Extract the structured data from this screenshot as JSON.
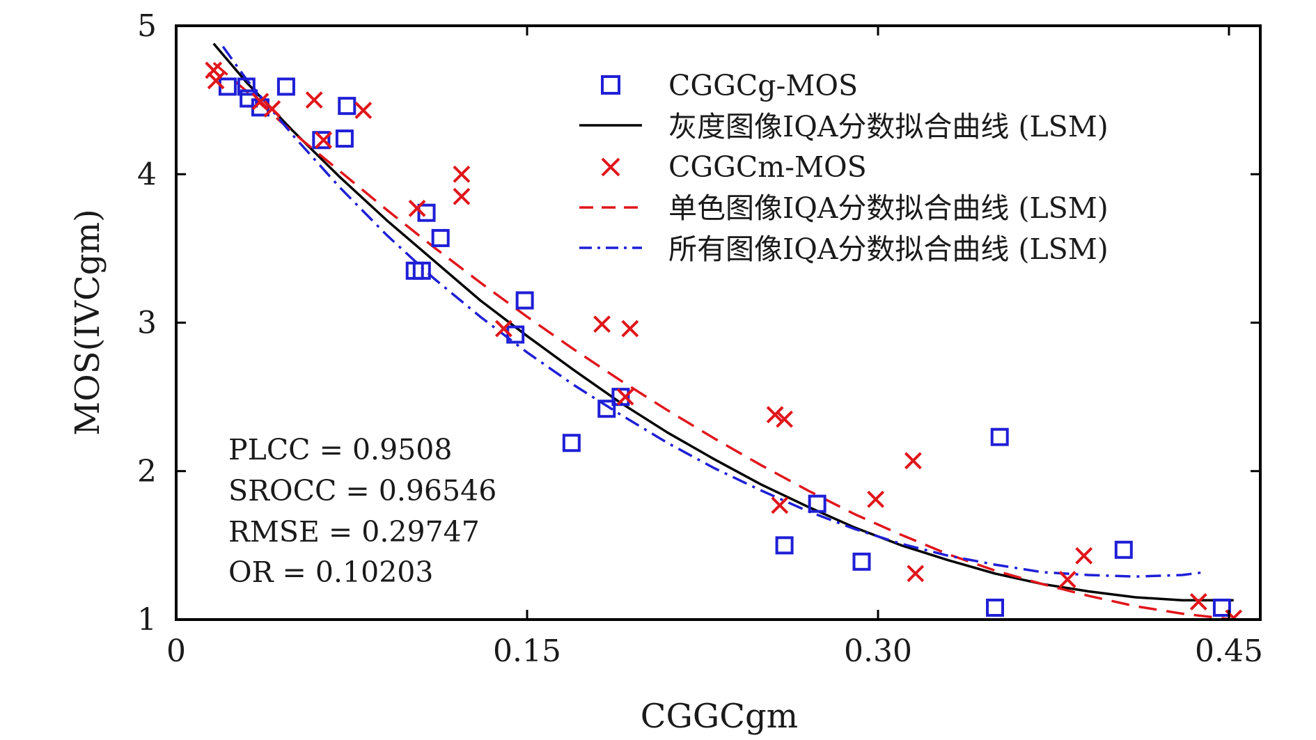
{
  "chart_data": {
    "type": "scatter",
    "xlabel": "CGGCgm",
    "ylabel": "MOS(IVCgm)",
    "xlim": [
      0,
      0.46
    ],
    "ylim": [
      1,
      5
    ],
    "x_ticks": [
      0,
      0.15,
      0.3,
      0.45
    ],
    "x_tick_labels": [
      "0",
      "0.15",
      "0.30",
      "0.45"
    ],
    "y_ticks": [
      1,
      2,
      3,
      4,
      5
    ],
    "y_tick_labels": [
      "1",
      "2",
      "3",
      "4",
      "5"
    ],
    "grid": false,
    "legend_position": "top-right",
    "series": [
      {
        "name": "CGGCg-MOS",
        "kind": "scatter",
        "marker": "square",
        "color": "#1f1fd6",
        "points": [
          [
            0.022,
            4.59
          ],
          [
            0.03,
            4.59
          ],
          [
            0.031,
            4.51
          ],
          [
            0.036,
            4.45
          ],
          [
            0.047,
            4.59
          ],
          [
            0.062,
            4.23
          ],
          [
            0.072,
            4.24
          ],
          [
            0.073,
            4.46
          ],
          [
            0.102,
            3.35
          ],
          [
            0.105,
            3.35
          ],
          [
            0.107,
            3.74
          ],
          [
            0.113,
            3.57
          ],
          [
            0.145,
            2.92
          ],
          [
            0.149,
            3.15
          ],
          [
            0.169,
            2.19
          ],
          [
            0.184,
            2.42
          ],
          [
            0.19,
            2.5
          ],
          [
            0.26,
            1.5
          ],
          [
            0.274,
            1.78
          ],
          [
            0.293,
            1.39
          ],
          [
            0.35,
            1.08
          ],
          [
            0.352,
            2.23
          ],
          [
            0.405,
            1.47
          ],
          [
            0.447,
            1.08
          ]
        ]
      },
      {
        "name": "灰度图像IQA分数拟合曲线 (LSM)",
        "kind": "line",
        "style": "solid",
        "color": "#000000",
        "points": [
          [
            0.016,
            4.88
          ],
          [
            0.03,
            4.62
          ],
          [
            0.05,
            4.29
          ],
          [
            0.07,
            3.98
          ],
          [
            0.09,
            3.69
          ],
          [
            0.11,
            3.42
          ],
          [
            0.13,
            3.15
          ],
          [
            0.15,
            2.91
          ],
          [
            0.17,
            2.68
          ],
          [
            0.19,
            2.46
          ],
          [
            0.21,
            2.26
          ],
          [
            0.23,
            2.08
          ],
          [
            0.25,
            1.91
          ],
          [
            0.27,
            1.76
          ],
          [
            0.29,
            1.62
          ],
          [
            0.31,
            1.5
          ],
          [
            0.33,
            1.4
          ],
          [
            0.35,
            1.31
          ],
          [
            0.37,
            1.24
          ],
          [
            0.39,
            1.19
          ],
          [
            0.41,
            1.15
          ],
          [
            0.43,
            1.13
          ],
          [
            0.452,
            1.13
          ]
        ]
      },
      {
        "name": "CGGCm-MOS",
        "kind": "scatter",
        "marker": "x",
        "color": "#e0161b",
        "points": [
          [
            0.016,
            4.7
          ],
          [
            0.017,
            4.63
          ],
          [
            0.036,
            4.49
          ],
          [
            0.041,
            4.44
          ],
          [
            0.059,
            4.5
          ],
          [
            0.063,
            4.23
          ],
          [
            0.08,
            4.43
          ],
          [
            0.103,
            3.77
          ],
          [
            0.122,
            4.0
          ],
          [
            0.122,
            3.85
          ],
          [
            0.14,
            2.96
          ],
          [
            0.182,
            2.99
          ],
          [
            0.192,
            2.5
          ],
          [
            0.194,
            2.96
          ],
          [
            0.256,
            2.38
          ],
          [
            0.26,
            2.35
          ],
          [
            0.258,
            1.77
          ],
          [
            0.299,
            1.81
          ],
          [
            0.315,
            2.07
          ],
          [
            0.316,
            1.31
          ],
          [
            0.381,
            1.27
          ],
          [
            0.388,
            1.43
          ],
          [
            0.437,
            1.12
          ],
          [
            0.452,
            1.01
          ]
        ]
      },
      {
        "name": "单色图像IQA分数拟合曲线 (LSM)",
        "kind": "line",
        "style": "dashed",
        "color": "#e0161b",
        "points": [
          [
            0.016,
            4.75
          ],
          [
            0.03,
            4.56
          ],
          [
            0.05,
            4.28
          ],
          [
            0.07,
            4.02
          ],
          [
            0.09,
            3.76
          ],
          [
            0.11,
            3.51
          ],
          [
            0.13,
            3.27
          ],
          [
            0.15,
            3.04
          ],
          [
            0.17,
            2.82
          ],
          [
            0.19,
            2.61
          ],
          [
            0.21,
            2.41
          ],
          [
            0.23,
            2.22
          ],
          [
            0.25,
            2.04
          ],
          [
            0.27,
            1.87
          ],
          [
            0.29,
            1.71
          ],
          [
            0.31,
            1.57
          ],
          [
            0.33,
            1.44
          ],
          [
            0.35,
            1.33
          ],
          [
            0.37,
            1.24
          ],
          [
            0.39,
            1.16
          ],
          [
            0.41,
            1.09
          ],
          [
            0.43,
            1.04
          ],
          [
            0.452,
            1.0
          ]
        ]
      },
      {
        "name": "所有图像IQA分数拟合曲线 (LSM)",
        "kind": "line",
        "style": "dashdot",
        "color": "#1f1fd6",
        "points": [
          [
            0.02,
            4.86
          ],
          [
            0.03,
            4.64
          ],
          [
            0.05,
            4.26
          ],
          [
            0.07,
            3.91
          ],
          [
            0.09,
            3.59
          ],
          [
            0.11,
            3.3
          ],
          [
            0.13,
            3.04
          ],
          [
            0.15,
            2.8
          ],
          [
            0.17,
            2.58
          ],
          [
            0.19,
            2.38
          ],
          [
            0.21,
            2.19
          ],
          [
            0.23,
            2.02
          ],
          [
            0.25,
            1.87
          ],
          [
            0.27,
            1.73
          ],
          [
            0.29,
            1.61
          ],
          [
            0.31,
            1.51
          ],
          [
            0.33,
            1.43
          ],
          [
            0.35,
            1.37
          ],
          [
            0.37,
            1.32
          ],
          [
            0.39,
            1.3
          ],
          [
            0.41,
            1.29
          ],
          [
            0.43,
            1.3
          ],
          [
            0.44,
            1.32
          ]
        ]
      }
    ],
    "annotations": [
      "PLCC = 0.9508",
      "SROCC = 0.96546",
      "RMSE = 0.29747",
      "OR = 0.10203"
    ]
  }
}
